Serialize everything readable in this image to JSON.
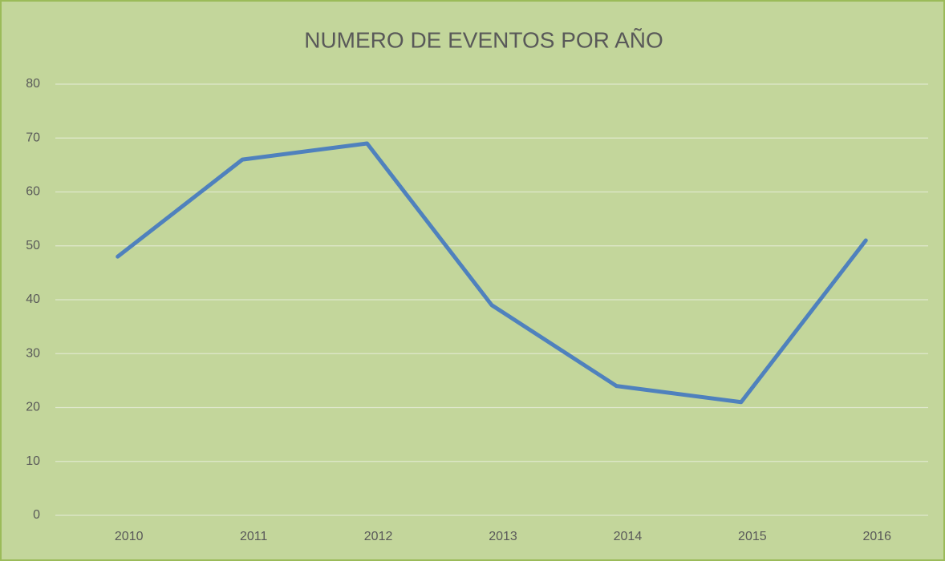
{
  "chart_data": {
    "type": "line",
    "title": "NUMERO DE EVENTOS POR AÑO",
    "categories": [
      "2010",
      "2011",
      "2012",
      "2013",
      "2014",
      "2015",
      "2016"
    ],
    "series": [
      {
        "color": "#4f81bd",
        "values": [
          48,
          66,
          69,
          39,
          24,
          21,
          51
        ]
      }
    ],
    "ylim": [
      0,
      80
    ],
    "yticks": [
      0,
      10,
      20,
      30,
      40,
      50,
      60,
      70,
      80
    ],
    "grid": true
  }
}
